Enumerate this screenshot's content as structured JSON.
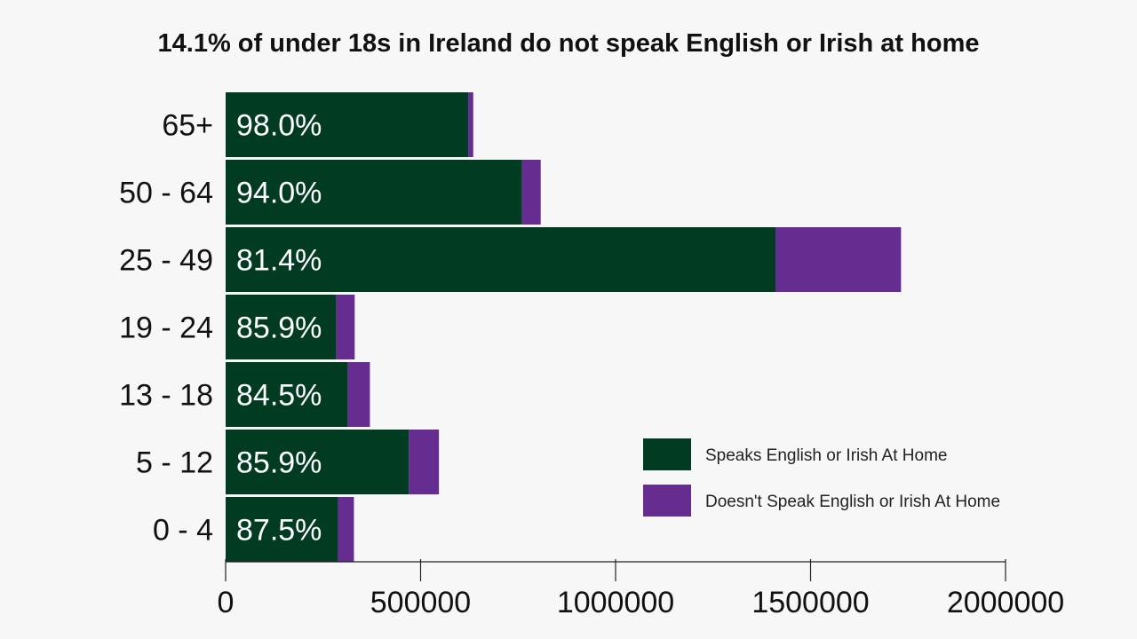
{
  "chart_data": {
    "type": "bar",
    "orientation": "horizontal",
    "stacked": true,
    "title": "14.1% of under 18s in Ireland do not speak English or Irish at home",
    "xlabel": "",
    "ylabel": "",
    "categories": [
      "65+",
      "50 - 64",
      "25 - 49",
      "19 - 24",
      "13 - 18",
      "5 - 12",
      "0 - 4"
    ],
    "series": [
      {
        "name": "Speaks English or Irish At Home",
        "color": "#003b22",
        "values": [
          622000,
          760000,
          1410000,
          284000,
          313000,
          470000,
          288000
        ]
      },
      {
        "name": "Doesn't Speak English or Irish At Home",
        "color": "#662d91",
        "values": [
          13000,
          48000,
          322000,
          47000,
          57000,
          77000,
          41000
        ]
      }
    ],
    "data_labels": [
      "98.0%",
      "94.0%",
      "81.4%",
      "85.9%",
      "84.5%",
      "85.9%",
      "87.5%"
    ],
    "xlim": [
      0,
      2000000
    ],
    "xticks": [
      0,
      500000,
      1000000,
      1500000,
      2000000
    ],
    "xtick_labels": [
      "0",
      "500000",
      "1000000",
      "1500000",
      "2000000"
    ],
    "grid": false,
    "legend_position": "right"
  }
}
